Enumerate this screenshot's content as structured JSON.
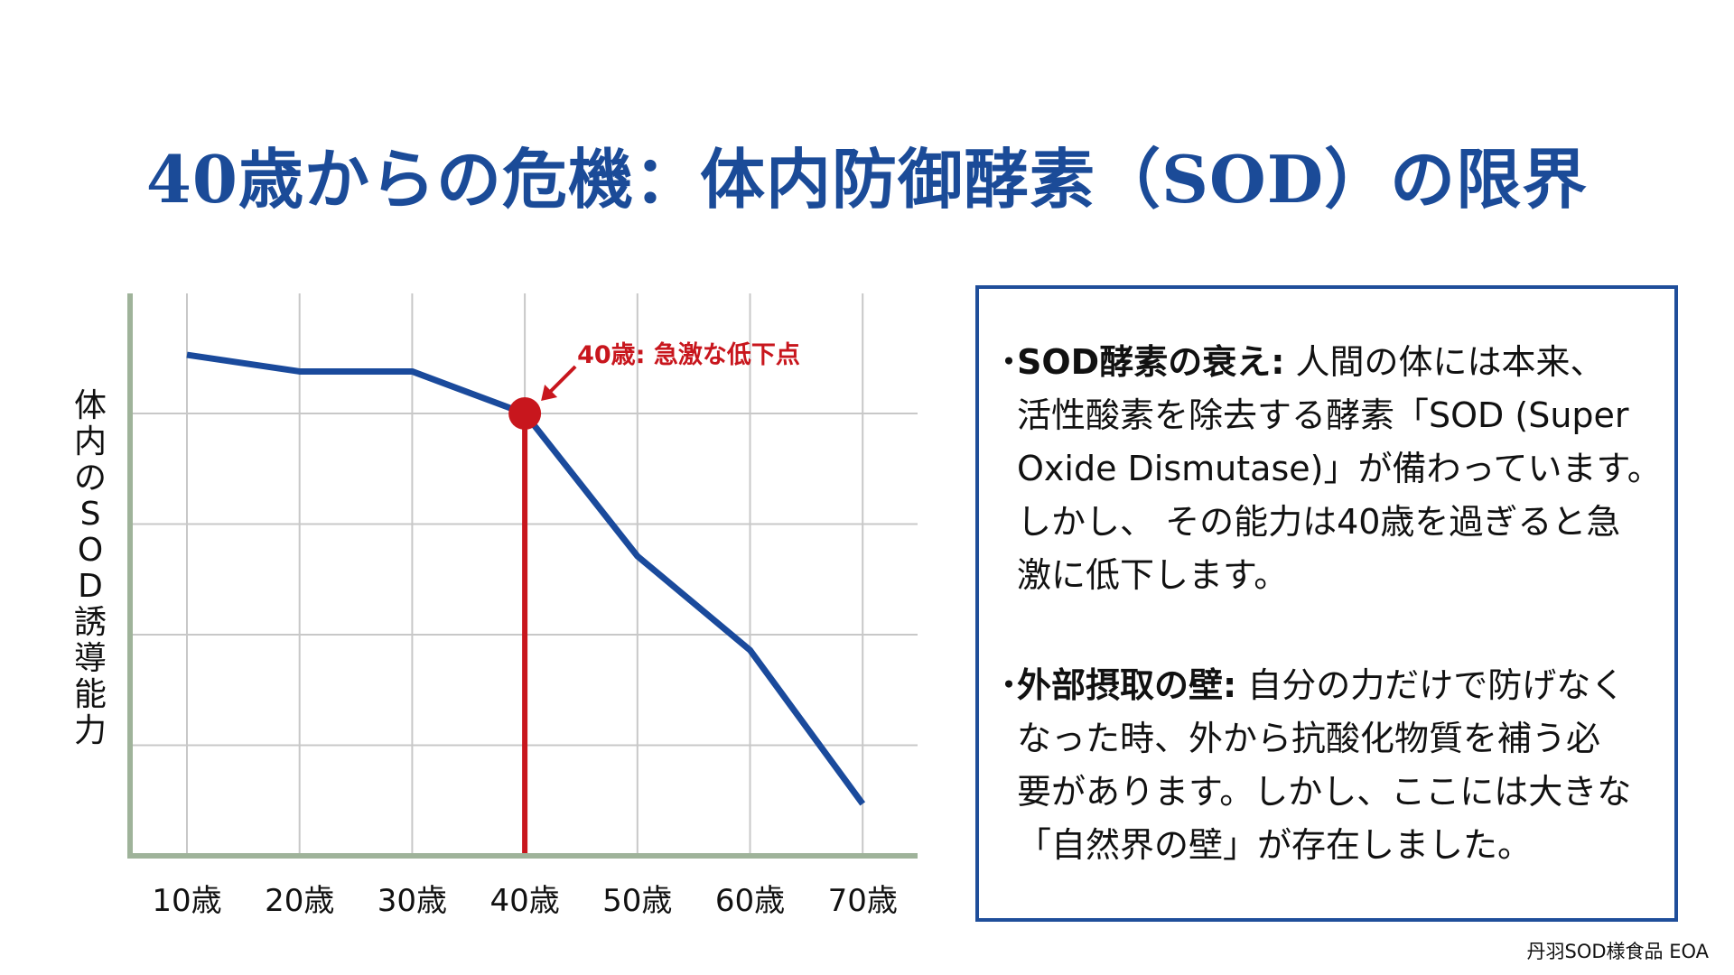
{
  "title": "40歳からの危機：体内防御酵素（SOD）の限界",
  "chart_data": {
    "type": "line",
    "title": "",
    "xlabel": "",
    "ylabel": "体内のSOD誘導能力",
    "categories": [
      "10歳",
      "20歳",
      "30歳",
      "40歳",
      "50歳",
      "60歳",
      "70歳"
    ],
    "series": [
      {
        "name": "SOD誘導能力",
        "values": [
          4.53,
          4.38,
          4.38,
          4.0,
          2.71,
          1.86,
          0.47
        ],
        "color": "#1a4a9c"
      }
    ],
    "ylim": [
      0,
      5.1
    ],
    "grid": true,
    "highlight": {
      "category": "40歳",
      "label": "40歳: 急激な低下点",
      "color": "#c8161d"
    },
    "axis_color": "#9fb39a"
  },
  "info": {
    "bullet": "・",
    "items": [
      {
        "heading": "SOD酵素の衰え:",
        "lines": [
          " 人間の体には本来、",
          "活性酸素を除去する酵素「SOD (Super",
          "Oxide Dismutase)」が備わっています。",
          " しかし、 その能力は40歳を過ぎると急",
          "激に低下します。"
        ]
      },
      {
        "heading": "外部摂取の壁:",
        "lines": [
          " 自分の力だけで防げなく",
          "なった時、外から抗酸化物質を補う必",
          "要があります。しかし、ここには大きな",
          "「自然界の壁」が存在しました。"
        ]
      }
    ]
  },
  "footer": "丹羽SOD様食品 EOA"
}
